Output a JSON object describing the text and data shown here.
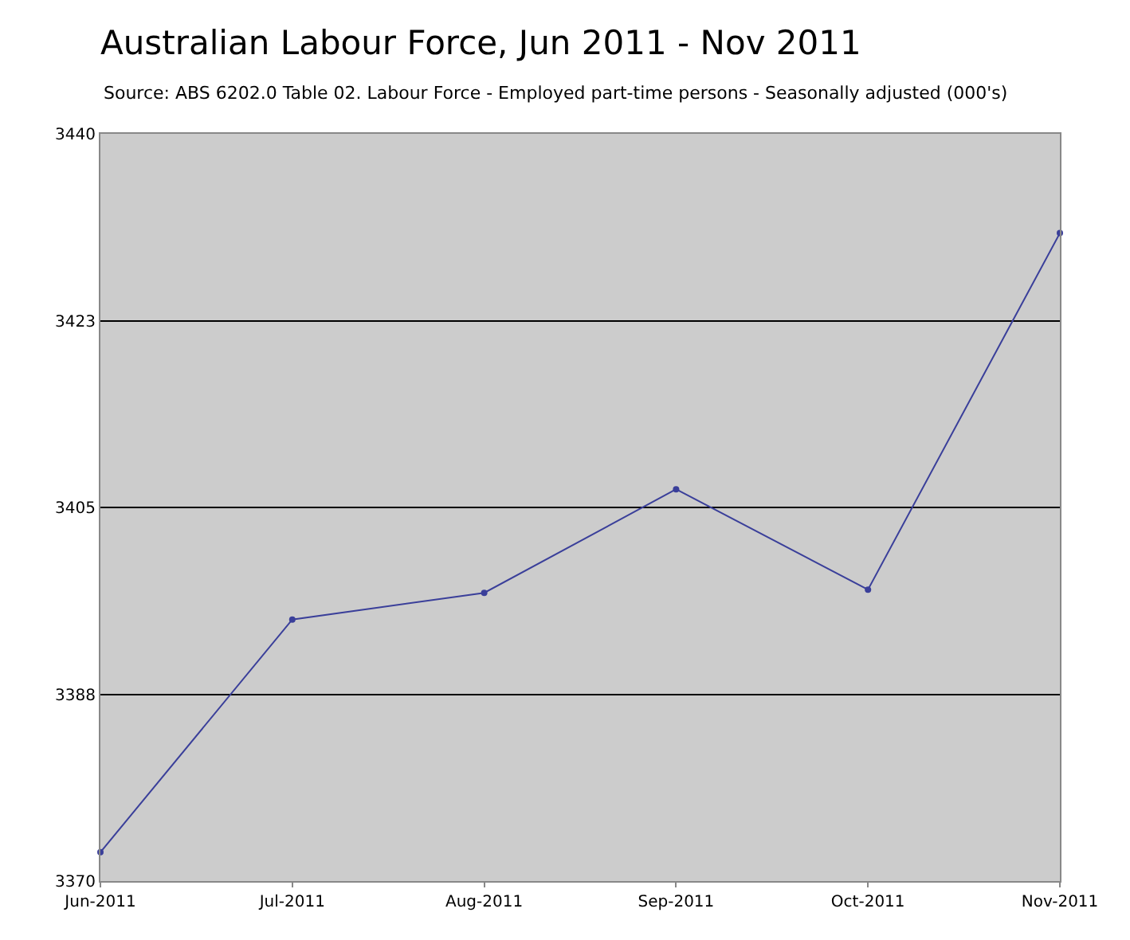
{
  "chart_data": {
    "type": "line",
    "title": "Australian Labour Force, Jun 2011 - Nov 2011",
    "subtitle": "Source: ABS 6202.0 Table 02. Labour Force - Employed part-time persons - Seasonally adjusted (000's)",
    "categories": [
      "Jun-2011",
      "Jul-2011",
      "Aug-2011",
      "Sep-2011",
      "Oct-2011",
      "Nov-2011"
    ],
    "series": [
      {
        "color": "#3a3f9a",
        "values": [
          3372.7,
          3394.5,
          3397.0,
          3406.7,
          3397.3,
          3430.7
        ]
      }
    ],
    "ylim": [
      3370,
      3440
    ],
    "yticks": [
      3370,
      {
        "value": 3387.5,
        "label": "3388"
      },
      3405,
      {
        "value": 3422.5,
        "label": "3423"
      },
      3440
    ],
    "grid": "y",
    "marker": "circle",
    "line_style": "solid"
  }
}
